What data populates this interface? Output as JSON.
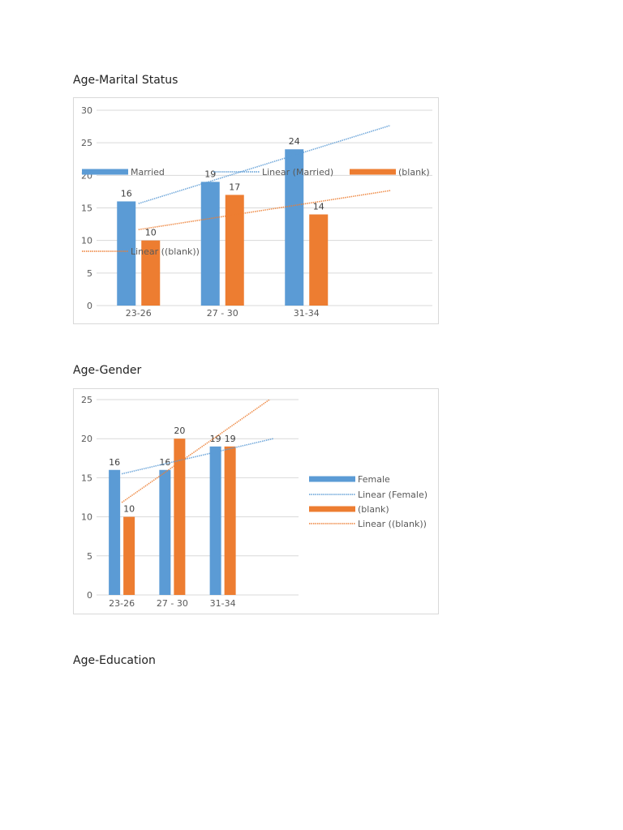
{
  "headings": [
    "Age-Marital Status",
    "Age-Gender",
    "Age-Education"
  ],
  "colors": {
    "blue": "#5b9bd5",
    "orange": "#ed7d31",
    "grid": "#d9d9d9",
    "text": "#595959"
  },
  "chart_data": [
    {
      "type": "bar",
      "title": "Age-Marital Status",
      "categories": [
        "23-26",
        "27 - 30",
        "31-34"
      ],
      "series": [
        {
          "name": "Married",
          "values": [
            16,
            19,
            24
          ],
          "color": "#5b9bd5"
        },
        {
          "name": "(blank)",
          "values": [
            10,
            17,
            14
          ],
          "color": "#ed7d31"
        }
      ],
      "trendlines": [
        {
          "name": "Linear (Married)",
          "series": 0,
          "type": "linear",
          "forward": 1
        },
        {
          "name": "Linear ((blank))",
          "series": 1,
          "type": "linear",
          "forward": 1
        }
      ],
      "ylim": [
        0,
        30
      ],
      "yticks": [
        0,
        5,
        10,
        15,
        20,
        25,
        30
      ],
      "grid": true,
      "legend": "overlapping-plot",
      "data_labels": true
    },
    {
      "type": "bar",
      "title": "Age-Gender",
      "categories": [
        "23-26",
        "27 - 30",
        "31-34"
      ],
      "series": [
        {
          "name": "Female",
          "values": [
            16,
            16,
            19
          ],
          "color": "#5b9bd5"
        },
        {
          "name": "(blank)",
          "values": [
            10,
            20,
            19
          ],
          "color": "#ed7d31"
        }
      ],
      "trendlines": [
        {
          "name": "Linear (Female)",
          "series": 0,
          "type": "linear",
          "forward": 1
        },
        {
          "name": "Linear ((blank))",
          "series": 1,
          "type": "linear",
          "forward": 1
        }
      ],
      "ylim": [
        0,
        25
      ],
      "yticks": [
        0,
        5,
        10,
        15,
        20,
        25
      ],
      "grid": true,
      "legend": "right",
      "data_labels": true
    }
  ]
}
